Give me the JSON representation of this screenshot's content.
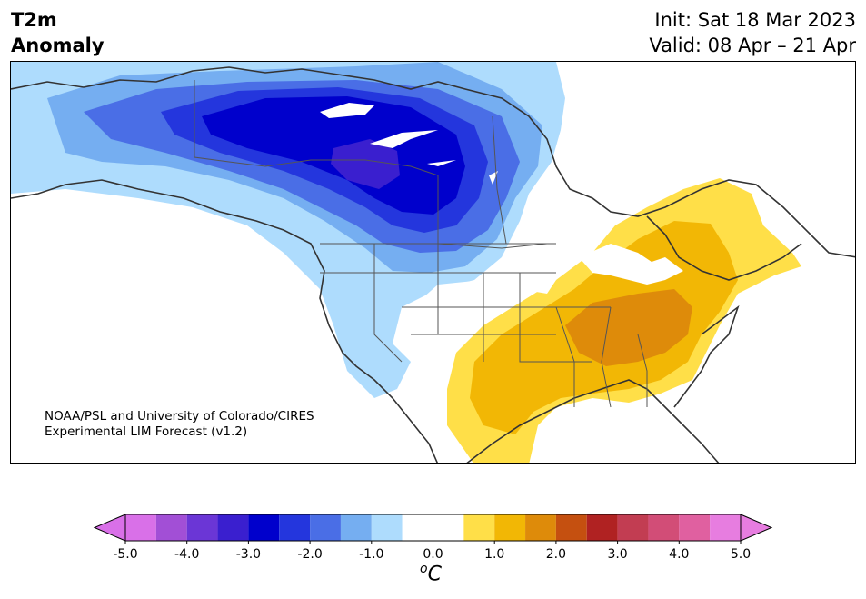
{
  "header": {
    "variable_line1": "T2m",
    "variable_line2": "Anomaly",
    "init_text": "Init: Sat 18 Mar 2023",
    "valid_text": "Valid: 08 Apr – 21 Apr"
  },
  "credit": {
    "line1": "NOAA/PSL and University of Colorado/CIRES",
    "line2": "Experimental LIM Forecast (v1.2)"
  },
  "map": {
    "region": "North America (contiguous US and southern Canada)",
    "pattern": "Cold anomalies over western/central Canada and northwestern US; warm anomalies over south-central, southeastern and northeastern US",
    "cold_core_value": -3.0,
    "warm_core_value": 2.0
  },
  "colorbar": {
    "unit_base": "C",
    "unit_sup": "o",
    "ticks": [
      "-5.0",
      "-4.0",
      "-3.0",
      "-2.0",
      "-1.0",
      "0.0",
      "1.0",
      "2.0",
      "3.0",
      "4.0",
      "5.0"
    ],
    "colors": {
      "low_extend": "#d970e8",
      "m4.5": "#a24fd6",
      "m4.0": "#6b36d6",
      "m3.5": "#3a1fcf",
      "m3.0": "#0000cc",
      "m2.5": "#2436dd",
      "m2.0": "#4a6ee6",
      "m1.5": "#75aef1",
      "m1.0": "#aedcfd",
      "zero": "#ffffff",
      "p0.5": "#ffdf48",
      "p1.0": "#f2b705",
      "p1.5": "#de8b0a",
      "p2.0": "#c55010",
      "p2.5": "#b02222",
      "p3.0": "#c23d52",
      "p3.5": "#d24d77",
      "p4.0": "#e060a0",
      "high_extend": "#e77de0"
    }
  }
}
